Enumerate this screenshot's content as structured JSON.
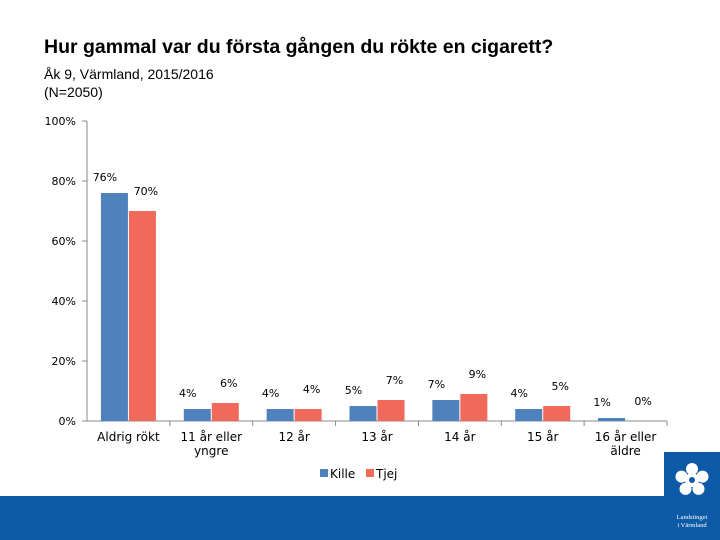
{
  "title": "Hur gammal var du första gången du rökte en cigarett?",
  "subtitle": "Åk 9, Värmland, 2015/2016",
  "sample": "(N=2050)",
  "logo": {
    "line1": "Landstinget",
    "line2": "i Värmland"
  },
  "colors": {
    "kille": "#4f81bd",
    "tjej": "#f0695a",
    "footer": "#0d5aa7",
    "axis": "#888888"
  },
  "chart_data": {
    "type": "bar",
    "categories": [
      "Aldrig rökt",
      "11 år eller yngre",
      "12 år",
      "13 år",
      "14 år",
      "15 år",
      "16 år eller äldre"
    ],
    "series": [
      {
        "name": "Kille",
        "values": [
          76,
          4,
          4,
          5,
          7,
          4,
          1
        ]
      },
      {
        "name": "Tjej",
        "values": [
          70,
          6,
          4,
          7,
          9,
          5,
          0
        ]
      }
    ],
    "ylim": [
      0,
      100
    ],
    "yticks": [
      "0%",
      "20%",
      "40%",
      "60%",
      "80%",
      "100%"
    ],
    "legend": "bottom",
    "grid": false
  }
}
